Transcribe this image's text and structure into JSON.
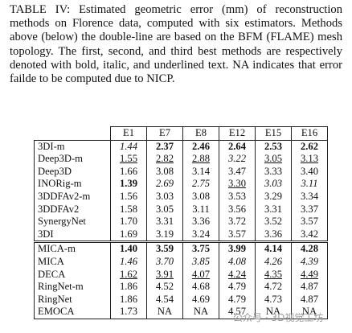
{
  "caption": "TABLE IV: Estimated geometric error (mm) of reconstruction methods on Florence data, computed with six estimators. Methods above (below) the double-line are based on the BFM (FLAME) mesh topology. The first, second, and third best methods are respectively denoted with bold, italic, and underlined text. NA indicates that error failde to be computed due to NICP.",
  "table": {
    "columns": [
      "E1",
      "E7",
      "E8",
      "E12",
      "E15",
      "E16"
    ],
    "groups": [
      {
        "rows": [
          {
            "method": "3DI-m",
            "values": [
              "1.44",
              "2.37",
              "2.46",
              "2.64",
              "2.53",
              "2.62"
            ],
            "format": [
              "i",
              "b",
              "b",
              "b",
              "b",
              "b"
            ]
          },
          {
            "method": "Deep3D-m",
            "values": [
              "1.55",
              "2.82",
              "2.88",
              "3.22",
              "3.05",
              "3.13"
            ],
            "format": [
              "u",
              "u",
              "u",
              "i",
              "u",
              "u"
            ]
          },
          {
            "method": "Deep3D",
            "values": [
              "1.66",
              "3.08",
              "3.14",
              "3.47",
              "3.33",
              "3.40"
            ],
            "format": [
              null,
              null,
              null,
              null,
              null,
              null
            ]
          },
          {
            "method": "INORig-m",
            "values": [
              "1.39",
              "2.69",
              "2.75",
              "3.30",
              "3.03",
              "3.11"
            ],
            "format": [
              "b",
              "i",
              "i",
              "u",
              "i",
              "i"
            ]
          },
          {
            "method": "3DDFAv2-m",
            "values": [
              "1.56",
              "3.03",
              "3.08",
              "3.53",
              "3.29",
              "3.34"
            ],
            "format": [
              null,
              null,
              null,
              null,
              null,
              null
            ]
          },
          {
            "method": "3DDFAv2",
            "values": [
              "1.58",
              "3.05",
              "3.11",
              "3.56",
              "3.31",
              "3.37"
            ],
            "format": [
              null,
              null,
              null,
              null,
              null,
              null
            ]
          },
          {
            "method": "SynergyNet",
            "values": [
              "1.70",
              "3.31",
              "3.36",
              "3.72",
              "3.52",
              "3.57"
            ],
            "format": [
              null,
              null,
              null,
              null,
              null,
              null
            ]
          },
          {
            "method": "3DI",
            "values": [
              "1.69",
              "3.19",
              "3.24",
              "3.57",
              "3.36",
              "3.42"
            ],
            "format": [
              null,
              null,
              null,
              null,
              null,
              null
            ]
          }
        ]
      },
      {
        "rows": [
          {
            "method": "MICA-m",
            "values": [
              "1.40",
              "3.59",
              "3.75",
              "3.99",
              "4.14",
              "4.28"
            ],
            "format": [
              "b",
              "b",
              "b",
              "b",
              "b",
              "b"
            ]
          },
          {
            "method": "MICA",
            "values": [
              "1.46",
              "3.70",
              "3.85",
              "4.08",
              "4.26",
              "4.39"
            ],
            "format": [
              "i",
              "i",
              "i",
              "i",
              "i",
              "i"
            ]
          },
          {
            "method": "DECA",
            "values": [
              "1.62",
              "3.91",
              "4.07",
              "4.24",
              "4.35",
              "4.49"
            ],
            "format": [
              "u",
              "u",
              "u",
              "u",
              "u",
              "u"
            ]
          },
          {
            "method": "RingNet-m",
            "values": [
              "1.86",
              "4.52",
              "4.68",
              "4.79",
              "4.72",
              "4.87"
            ],
            "format": [
              null,
              null,
              null,
              null,
              null,
              null
            ]
          },
          {
            "method": "RingNet",
            "values": [
              "1.86",
              "4.54",
              "4.69",
              "4.79",
              "4.73",
              "4.87"
            ],
            "format": [
              null,
              null,
              null,
              null,
              null,
              null
            ]
          },
          {
            "method": "EMOCA",
            "values": [
              "1.73",
              "NA",
              "NA",
              "4.57",
              "NA",
              "NA"
            ],
            "format": [
              null,
              null,
              null,
              null,
              null,
              null
            ]
          }
        ]
      }
    ]
  },
  "watermark": "公众号 · 3D视觉工坊"
}
